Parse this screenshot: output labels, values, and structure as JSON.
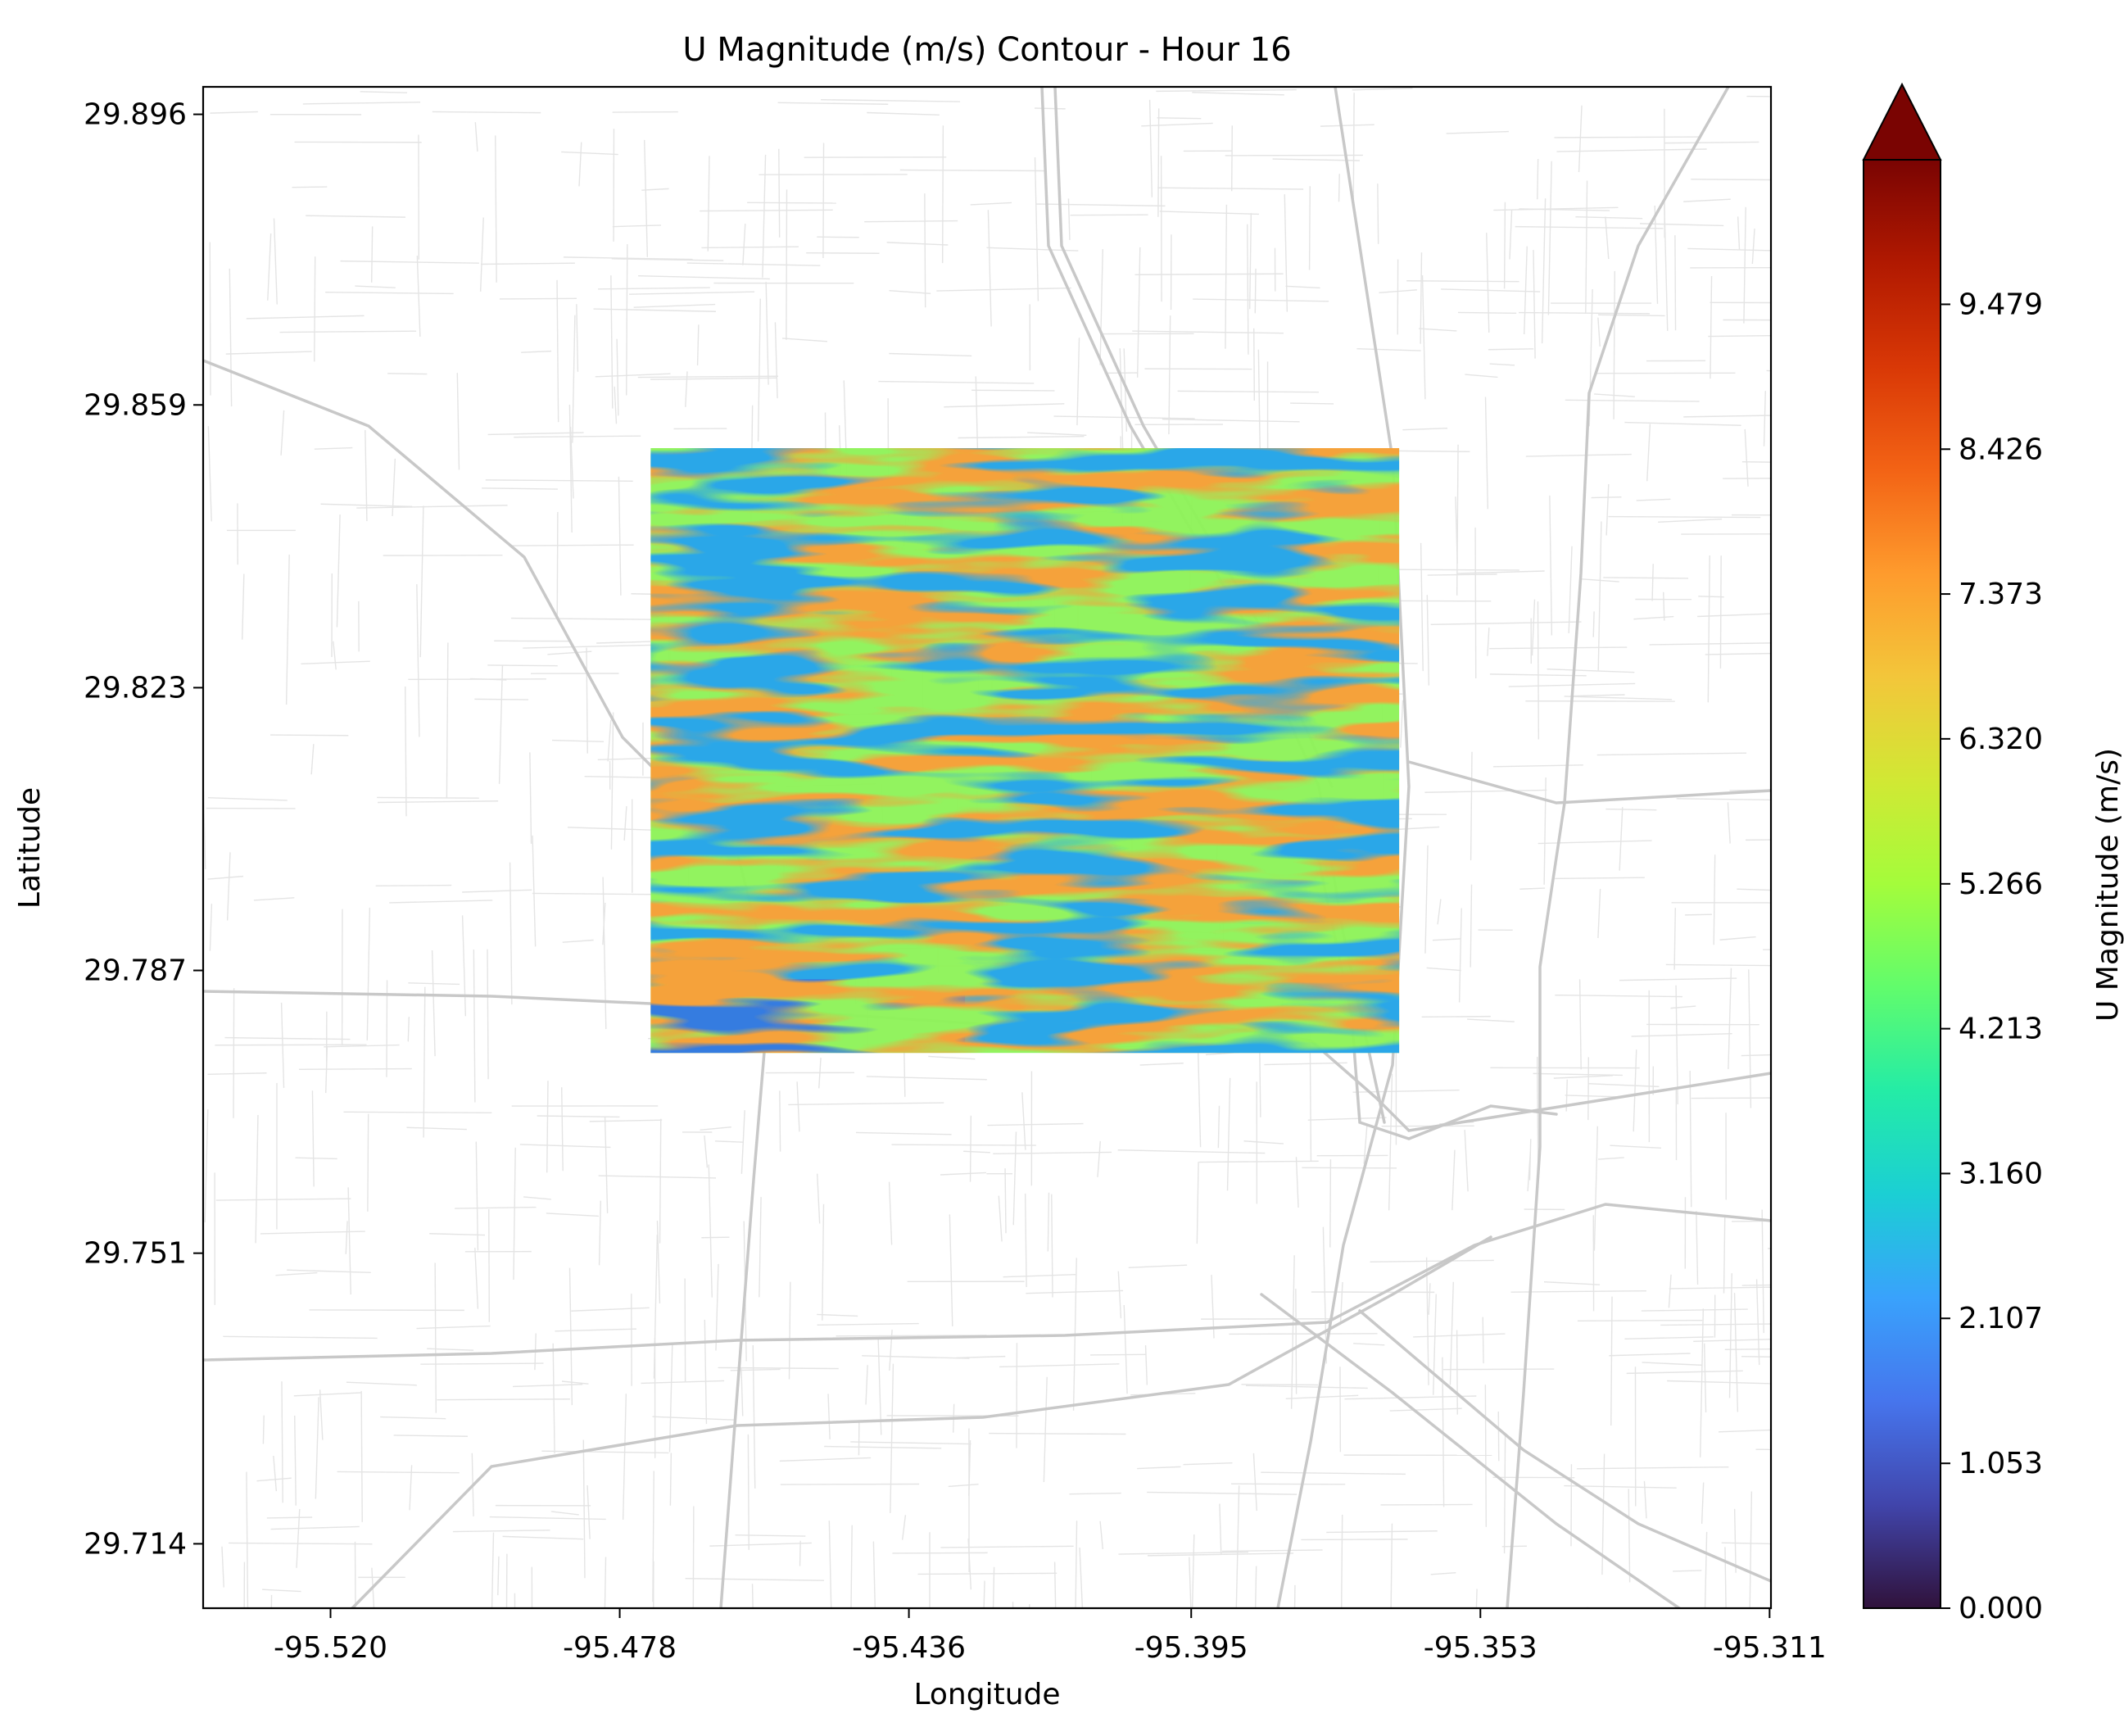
{
  "chart_data": {
    "type": "heatmap",
    "title": "U Magnitude (m/s) Contour - Hour 16",
    "xlabel": "Longitude",
    "ylabel": "Latitude",
    "x_ticks": [
      "-95.520",
      "-95.478",
      "-95.436",
      "-95.395",
      "-95.353",
      "-95.311"
    ],
    "y_ticks": [
      "29.896",
      "29.859",
      "29.823",
      "29.787",
      "29.751",
      "29.714"
    ],
    "x_tick_values": [
      -95.52,
      -95.478,
      -95.436,
      -95.395,
      -95.353,
      -95.311
    ],
    "y_tick_values": [
      29.896,
      29.859,
      29.823,
      29.787,
      29.751,
      29.714
    ],
    "xlim": [
      -95.5385,
      -95.3108
    ],
    "ylim": [
      29.7058,
      29.8995
    ],
    "contour_extent": {
      "lon": [
        -95.4735,
        -95.3648
      ],
      "lat": [
        29.7765,
        29.8535
      ]
    },
    "basemap": "street map (light gray roads)",
    "grid": false,
    "colorbar": {
      "label": "U Magnitude (m/s)",
      "colormap": "turbo",
      "extend": "max",
      "min": 0.0,
      "max": 10.53,
      "ticks": [
        "0.000",
        "1.053",
        "2.107",
        "3.160",
        "4.213",
        "5.266",
        "6.320",
        "7.373",
        "8.426",
        "9.479"
      ],
      "tick_values": [
        0.0,
        1.053,
        2.107,
        3.16,
        4.213,
        5.266,
        6.32,
        7.373,
        8.426,
        9.479
      ],
      "stops": [
        "#30123b",
        "#4145ab",
        "#4675ed",
        "#39a2fc",
        "#1bcfd4",
        "#24eca6",
        "#61fc6c",
        "#a4fc3b",
        "#d1e834",
        "#f3c63a",
        "#fe9b2d",
        "#f36315",
        "#d93806",
        "#b11901",
        "#7a0402"
      ]
    }
  }
}
